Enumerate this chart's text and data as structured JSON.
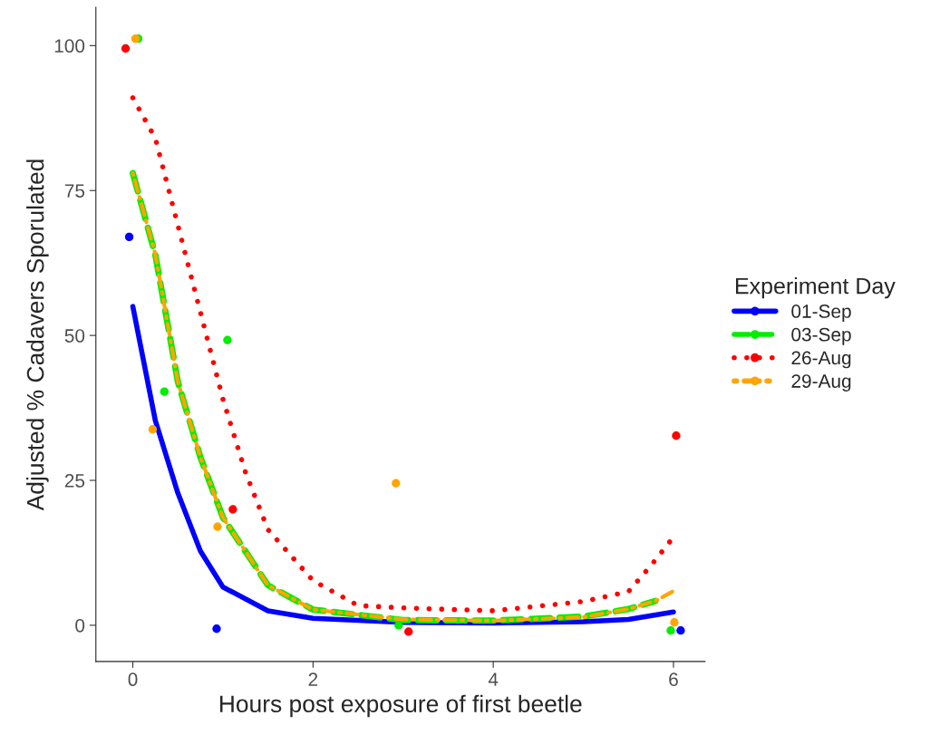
{
  "chart_data": {
    "type": "line",
    "xlabel": "Hours post exposure of first beetle",
    "ylabel": "Adjusted % Cadavers Sporulated",
    "legend_title": "Experiment Day",
    "xlim": [
      -0.41,
      6.35
    ],
    "ylim": [
      -6.25,
      106.6
    ],
    "xticks": [
      0,
      2,
      4,
      6
    ],
    "yticks": [
      0,
      25,
      50,
      75,
      100
    ],
    "grid": false,
    "legend": "right",
    "series": [
      {
        "name": "01-Sep",
        "color": "#0000ff",
        "line_style": "solid",
        "x": [
          0,
          0.25,
          0.5,
          0.75,
          1,
          1.5,
          2,
          3,
          4,
          5,
          5.5,
          6
        ],
        "values": [
          55,
          35.3,
          22.8,
          12.8,
          6.6,
          2.5,
          1.2,
          0.5,
          0.4,
          0.6,
          1.0,
          2.3
        ]
      },
      {
        "name": "03-Sep",
        "color": "#00ee00",
        "line_style": "dashed",
        "x": [
          0,
          0.25,
          0.5,
          0.75,
          1,
          1.5,
          2,
          3,
          4,
          5,
          5.5,
          5.8
        ],
        "values": [
          78,
          63.9,
          42,
          29,
          18.6,
          6.9,
          2.7,
          0.9,
          0.8,
          1.5,
          2.8,
          4.2
        ]
      },
      {
        "name": "26-Aug",
        "color": "#ff0000",
        "line_style": "dotted",
        "x": [
          0,
          0.25,
          0.5,
          0.75,
          1,
          1.25,
          1.5,
          2,
          2.5,
          3,
          4,
          5,
          5.5,
          5.75,
          6
        ],
        "values": [
          91,
          84,
          69,
          54,
          39,
          26.4,
          16.5,
          7.7,
          3.4,
          3.0,
          2.5,
          4.1,
          5.8,
          10.3,
          15.2
        ]
      },
      {
        "name": "29-Aug",
        "color": "#ffa500",
        "line_style": "dashdot",
        "x": [
          0,
          0.25,
          0.5,
          0.75,
          1,
          1.5,
          2,
          3,
          4,
          5,
          5.5,
          5.8,
          6
        ],
        "values": [
          78,
          64,
          42,
          29,
          18.6,
          6.9,
          2.7,
          1.0,
          0.8,
          1.4,
          2.8,
          4.2,
          5.9
        ]
      },
      {
        "color": "#0000ff",
        "type": "scatter",
        "marker": "circle",
        "x": [
          -0.04,
          0.93,
          6.08
        ],
        "values": [
          67,
          -0.6,
          -0.9
        ]
      },
      {
        "color": "#00ee00",
        "type": "scatter",
        "marker": "circle",
        "x": [
          0.06,
          0.35,
          1.05,
          2.95,
          5.97
        ],
        "values": [
          101.2,
          40.3,
          49.2,
          0,
          -0.9
        ]
      },
      {
        "color": "#ff0000",
        "type": "scatter",
        "marker": "circle",
        "x": [
          -0.08,
          1.11,
          3.06,
          6.03
        ],
        "values": [
          99.5,
          20,
          -1.1,
          32.7
        ]
      },
      {
        "color": "#ffa500",
        "type": "scatter",
        "marker": "circle",
        "x": [
          0.03,
          0.22,
          0.94,
          2.92,
          6.01
        ],
        "values": [
          101.2,
          33.8,
          17,
          24.5,
          0.5
        ]
      }
    ]
  }
}
